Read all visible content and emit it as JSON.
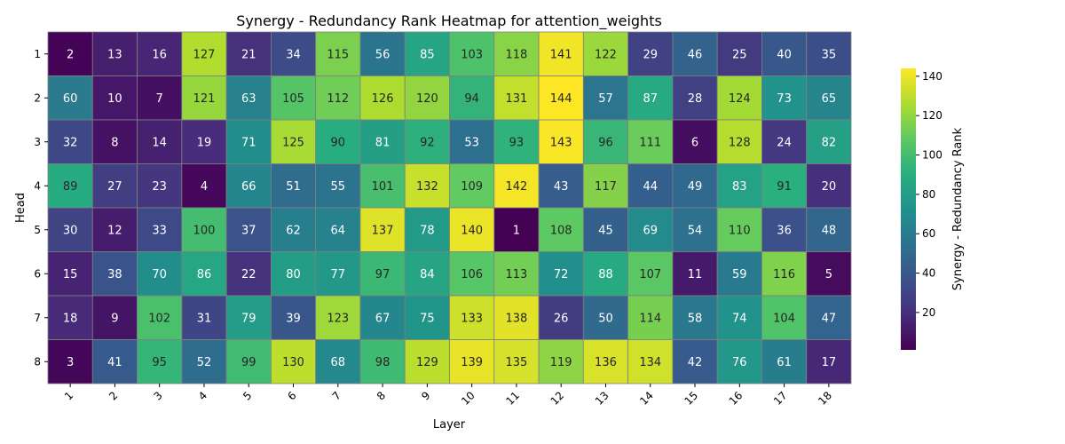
{
  "chart_data": {
    "type": "heatmap",
    "title": "Synergy - Redundancy Rank Heatmap for attention_weights",
    "xlabel": "Layer",
    "ylabel": "Head",
    "x_categories": [
      "1",
      "2",
      "3",
      "4",
      "5",
      "6",
      "7",
      "8",
      "9",
      "10",
      "11",
      "12",
      "13",
      "14",
      "15",
      "16",
      "17",
      "18"
    ],
    "y_categories": [
      "1",
      "2",
      "3",
      "4",
      "5",
      "6",
      "7",
      "8"
    ],
    "values": [
      [
        2,
        13,
        16,
        127,
        21,
        34,
        115,
        56,
        85,
        103,
        118,
        141,
        122,
        29,
        46,
        25,
        40,
        35
      ],
      [
        60,
        10,
        7,
        121,
        63,
        105,
        112,
        126,
        120,
        94,
        131,
        144,
        57,
        87,
        28,
        124,
        73,
        65
      ],
      [
        32,
        8,
        14,
        19,
        71,
        125,
        90,
        81,
        92,
        53,
        93,
        143,
        96,
        111,
        6,
        128,
        24,
        82
      ],
      [
        89,
        27,
        23,
        4,
        66,
        51,
        55,
        101,
        132,
        109,
        142,
        43,
        117,
        44,
        49,
        83,
        91,
        20
      ],
      [
        30,
        12,
        33,
        100,
        37,
        62,
        64,
        137,
        78,
        140,
        1,
        108,
        45,
        69,
        54,
        110,
        36,
        48
      ],
      [
        15,
        38,
        70,
        86,
        22,
        80,
        77,
        97,
        84,
        106,
        113,
        72,
        88,
        107,
        11,
        59,
        116,
        5
      ],
      [
        18,
        9,
        102,
        31,
        79,
        39,
        123,
        67,
        75,
        133,
        138,
        26,
        50,
        114,
        58,
        74,
        104,
        47
      ],
      [
        3,
        41,
        95,
        52,
        99,
        130,
        68,
        98,
        129,
        139,
        135,
        119,
        136,
        134,
        42,
        76,
        61,
        17
      ]
    ],
    "colorbar": {
      "label": "Synergy - Redundancy Rank",
      "ticks": [
        20,
        40,
        60,
        80,
        100,
        120,
        140
      ],
      "range": [
        1,
        144
      ],
      "colormap": "viridis"
    },
    "grid_line_color": "#808080"
  }
}
